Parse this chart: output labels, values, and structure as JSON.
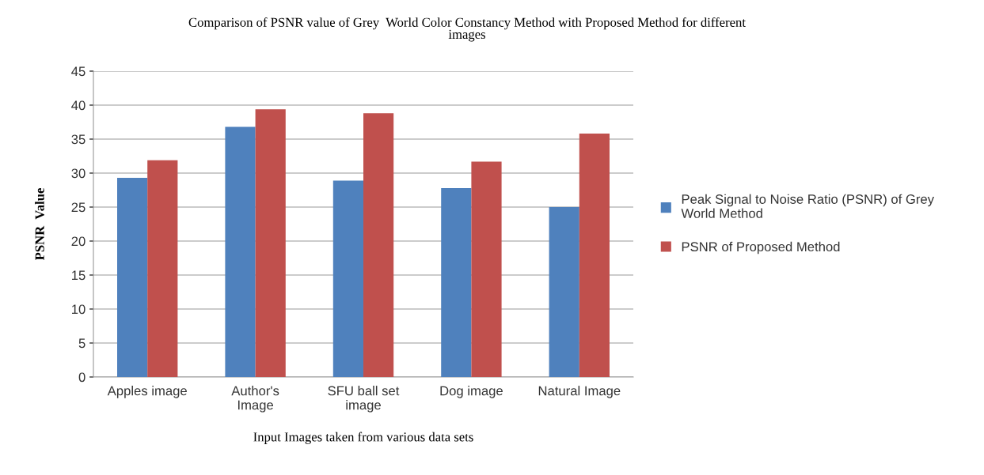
{
  "chart_data": {
    "type": "bar",
    "title": "Comparison of PSNR value of Grey  World Color Constancy Method with Proposed Method for different\nimages",
    "xlabel": "Input Images taken from various data sets",
    "ylabel": "PSNR  Value",
    "categories": [
      "Apples image",
      "Author's\nImage",
      "SFU ball set\nimage",
      "Dog image",
      "Natural Image"
    ],
    "series": [
      {
        "name": "Peak Signal to Noise Ratio (PSNR) of Grey\nWorld Method",
        "color": "#4f81bd",
        "values": [
          29.3,
          36.8,
          28.9,
          27.8,
          25.0
        ]
      },
      {
        "name": "PSNR of Proposed Method",
        "color": "#c0504d",
        "values": [
          31.9,
          39.4,
          38.8,
          31.7,
          35.8
        ]
      }
    ],
    "ylim": [
      0,
      45
    ],
    "yticks": [
      0,
      5,
      10,
      15,
      20,
      25,
      30,
      35,
      40,
      45
    ],
    "grid": "y",
    "legend": "right"
  }
}
